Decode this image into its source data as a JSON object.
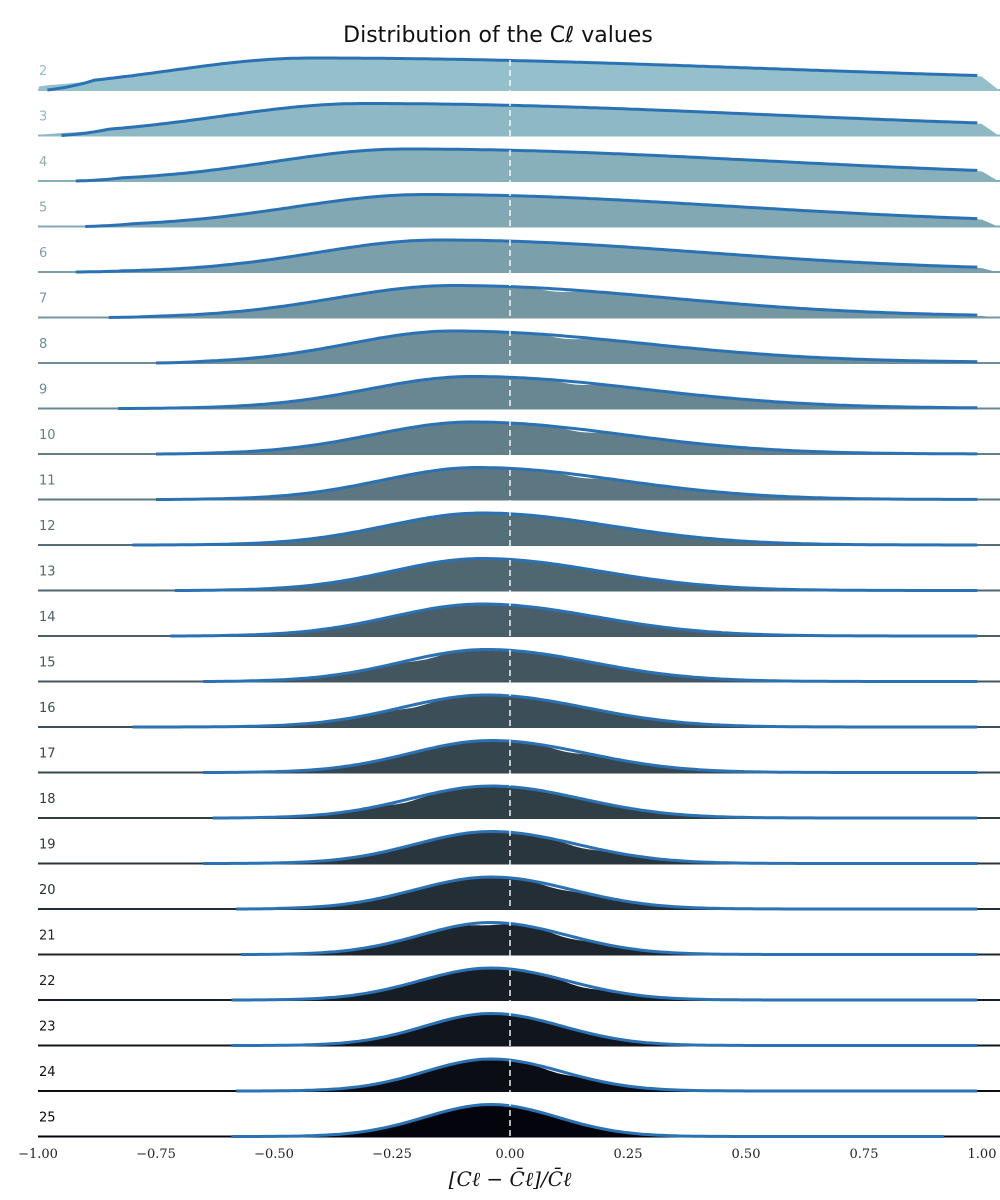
{
  "chart_data": {
    "type": "ridgeline",
    "title": "Distribution of the Cℓ values",
    "xlabel": "[Cℓ − C̄ℓ]/C̄ℓ",
    "xlim": [
      -1.0,
      1.0
    ],
    "x_ticks": [
      {
        "value": -1.0,
        "label": "−1.00"
      },
      {
        "value": -0.75,
        "label": "−0.75"
      },
      {
        "value": -0.5,
        "label": "−0.50"
      },
      {
        "value": -0.25,
        "label": "−0.25"
      },
      {
        "value": 0.0,
        "label": "0.00"
      },
      {
        "value": 0.25,
        "label": "0.25"
      },
      {
        "value": 0.5,
        "label": "0.50"
      },
      {
        "value": 0.75,
        "label": "0.75"
      },
      {
        "value": 1.0,
        "label": "1.00"
      }
    ],
    "reference_line_x": 0.0,
    "fit_color": "#2a72b4",
    "fill_color_start": "#94c0cc",
    "fill_color_end": "#04050c",
    "series": [
      {
        "label": "2",
        "peak_x": -0.42,
        "sigma_left": 0.3,
        "sigma_right": 0.95,
        "x_start": -0.98,
        "x_end": 0.99,
        "end_level": 0.18,
        "bumps": []
      },
      {
        "label": "3",
        "peak_x": -0.31,
        "sigma_left": 0.3,
        "sigma_right": 0.85,
        "x_start": -0.95,
        "x_end": 0.99,
        "end_level": 0.12,
        "bumps": []
      },
      {
        "label": "4",
        "peak_x": -0.22,
        "sigma_left": 0.28,
        "sigma_right": 0.75,
        "x_start": -0.92,
        "x_end": 0.99,
        "end_level": 0.08,
        "bumps": []
      },
      {
        "label": "5",
        "peak_x": -0.18,
        "sigma_left": 0.28,
        "sigma_right": 0.65,
        "x_start": -0.9,
        "x_end": 0.99,
        "end_level": 0.06,
        "bumps": []
      },
      {
        "label": "6",
        "peak_x": -0.15,
        "sigma_left": 0.26,
        "sigma_right": 0.55,
        "x_start": -0.92,
        "x_end": 0.99,
        "end_level": 0.04,
        "bumps": [
          0.08
        ]
      },
      {
        "label": "7",
        "peak_x": -0.12,
        "sigma_left": 0.25,
        "sigma_right": 0.45,
        "x_start": -0.85,
        "x_end": 0.99,
        "end_level": 0.03,
        "bumps": [
          0.1
        ]
      },
      {
        "label": "8",
        "peak_x": -0.12,
        "sigma_left": 0.22,
        "sigma_right": 0.4,
        "x_start": -0.75,
        "x_end": 0.99,
        "end_level": 0.02,
        "bumps": [
          0.12
        ]
      },
      {
        "label": "9",
        "peak_x": -0.08,
        "sigma_left": 0.22,
        "sigma_right": 0.36,
        "x_start": -0.83,
        "x_end": 0.99,
        "end_level": 0.01,
        "bumps": [
          0.14
        ]
      },
      {
        "label": "10",
        "peak_x": -0.08,
        "sigma_left": 0.21,
        "sigma_right": 0.32,
        "x_start": -0.75,
        "x_end": 0.99,
        "end_level": 0.0,
        "bumps": [
          0.15
        ]
      },
      {
        "label": "11",
        "peak_x": -0.07,
        "sigma_left": 0.2,
        "sigma_right": 0.3,
        "x_start": -0.75,
        "x_end": 0.99,
        "end_level": 0.0,
        "bumps": [
          0.15
        ]
      },
      {
        "label": "12",
        "peak_x": -0.06,
        "sigma_left": 0.2,
        "sigma_right": 0.27,
        "x_start": -0.8,
        "x_end": 0.99,
        "end_level": 0.0,
        "bumps": [
          0.16
        ]
      },
      {
        "label": "13",
        "peak_x": -0.06,
        "sigma_left": 0.19,
        "sigma_right": 0.25,
        "x_start": -0.71,
        "x_end": 0.99,
        "end_level": 0.0,
        "bumps": [
          0.17
        ]
      },
      {
        "label": "14",
        "peak_x": -0.06,
        "sigma_left": 0.19,
        "sigma_right": 0.24,
        "x_start": -0.72,
        "x_end": 0.99,
        "end_level": 0.0,
        "bumps": [
          0.17
        ]
      },
      {
        "label": "15",
        "peak_x": -0.05,
        "sigma_left": 0.18,
        "sigma_right": 0.22,
        "x_start": -0.65,
        "x_end": 0.99,
        "end_level": 0.0,
        "bumps": [
          -0.18,
          0.18
        ]
      },
      {
        "label": "16",
        "peak_x": -0.05,
        "sigma_left": 0.18,
        "sigma_right": 0.21,
        "x_start": -0.8,
        "x_end": 0.99,
        "end_level": 0.0,
        "bumps": [
          -0.2,
          0.2
        ]
      },
      {
        "label": "17",
        "peak_x": -0.04,
        "sigma_left": 0.17,
        "sigma_right": 0.2,
        "x_start": -0.65,
        "x_end": 0.99,
        "end_level": 0.0,
        "bumps": [
          -0.15,
          0.12
        ]
      },
      {
        "label": "18",
        "peak_x": -0.04,
        "sigma_left": 0.17,
        "sigma_right": 0.19,
        "x_start": -0.63,
        "x_end": 0.99,
        "end_level": 0.0,
        "bumps": [
          -0.22,
          0.05
        ]
      },
      {
        "label": "19",
        "peak_x": -0.04,
        "sigma_left": 0.16,
        "sigma_right": 0.18,
        "x_start": -0.65,
        "x_end": 0.99,
        "end_level": 0.0,
        "bumps": [
          -0.25,
          0.15
        ]
      },
      {
        "label": "20",
        "peak_x": -0.04,
        "sigma_left": 0.16,
        "sigma_right": 0.17,
        "x_start": -0.58,
        "x_end": 0.99,
        "end_level": 0.0,
        "bumps": [
          -0.12,
          0.1
        ]
      },
      {
        "label": "21",
        "peak_x": -0.04,
        "sigma_left": 0.15,
        "sigma_right": 0.16,
        "x_start": -0.57,
        "x_end": 0.99,
        "end_level": 0.0,
        "bumps": [
          -0.05,
          0.12
        ]
      },
      {
        "label": "22",
        "peak_x": -0.04,
        "sigma_left": 0.15,
        "sigma_right": 0.16,
        "x_start": -0.59,
        "x_end": 0.99,
        "end_level": 0.0,
        "bumps": [
          -0.1,
          0.15
        ]
      },
      {
        "label": "23",
        "peak_x": -0.04,
        "sigma_left": 0.14,
        "sigma_right": 0.15,
        "x_start": -0.59,
        "x_end": 0.99,
        "end_level": 0.0,
        "bumps": [
          -0.12,
          0.08
        ]
      },
      {
        "label": "24",
        "peak_x": -0.04,
        "sigma_left": 0.14,
        "sigma_right": 0.15,
        "x_start": -0.58,
        "x_end": 0.99,
        "end_level": 0.0,
        "bumps": [
          -0.15,
          0.1
        ]
      },
      {
        "label": "25",
        "peak_x": -0.04,
        "sigma_left": 0.14,
        "sigma_right": 0.14,
        "x_start": -0.59,
        "x_end": 0.92,
        "end_level": 0.0,
        "bumps": [
          -0.08
        ]
      }
    ]
  }
}
